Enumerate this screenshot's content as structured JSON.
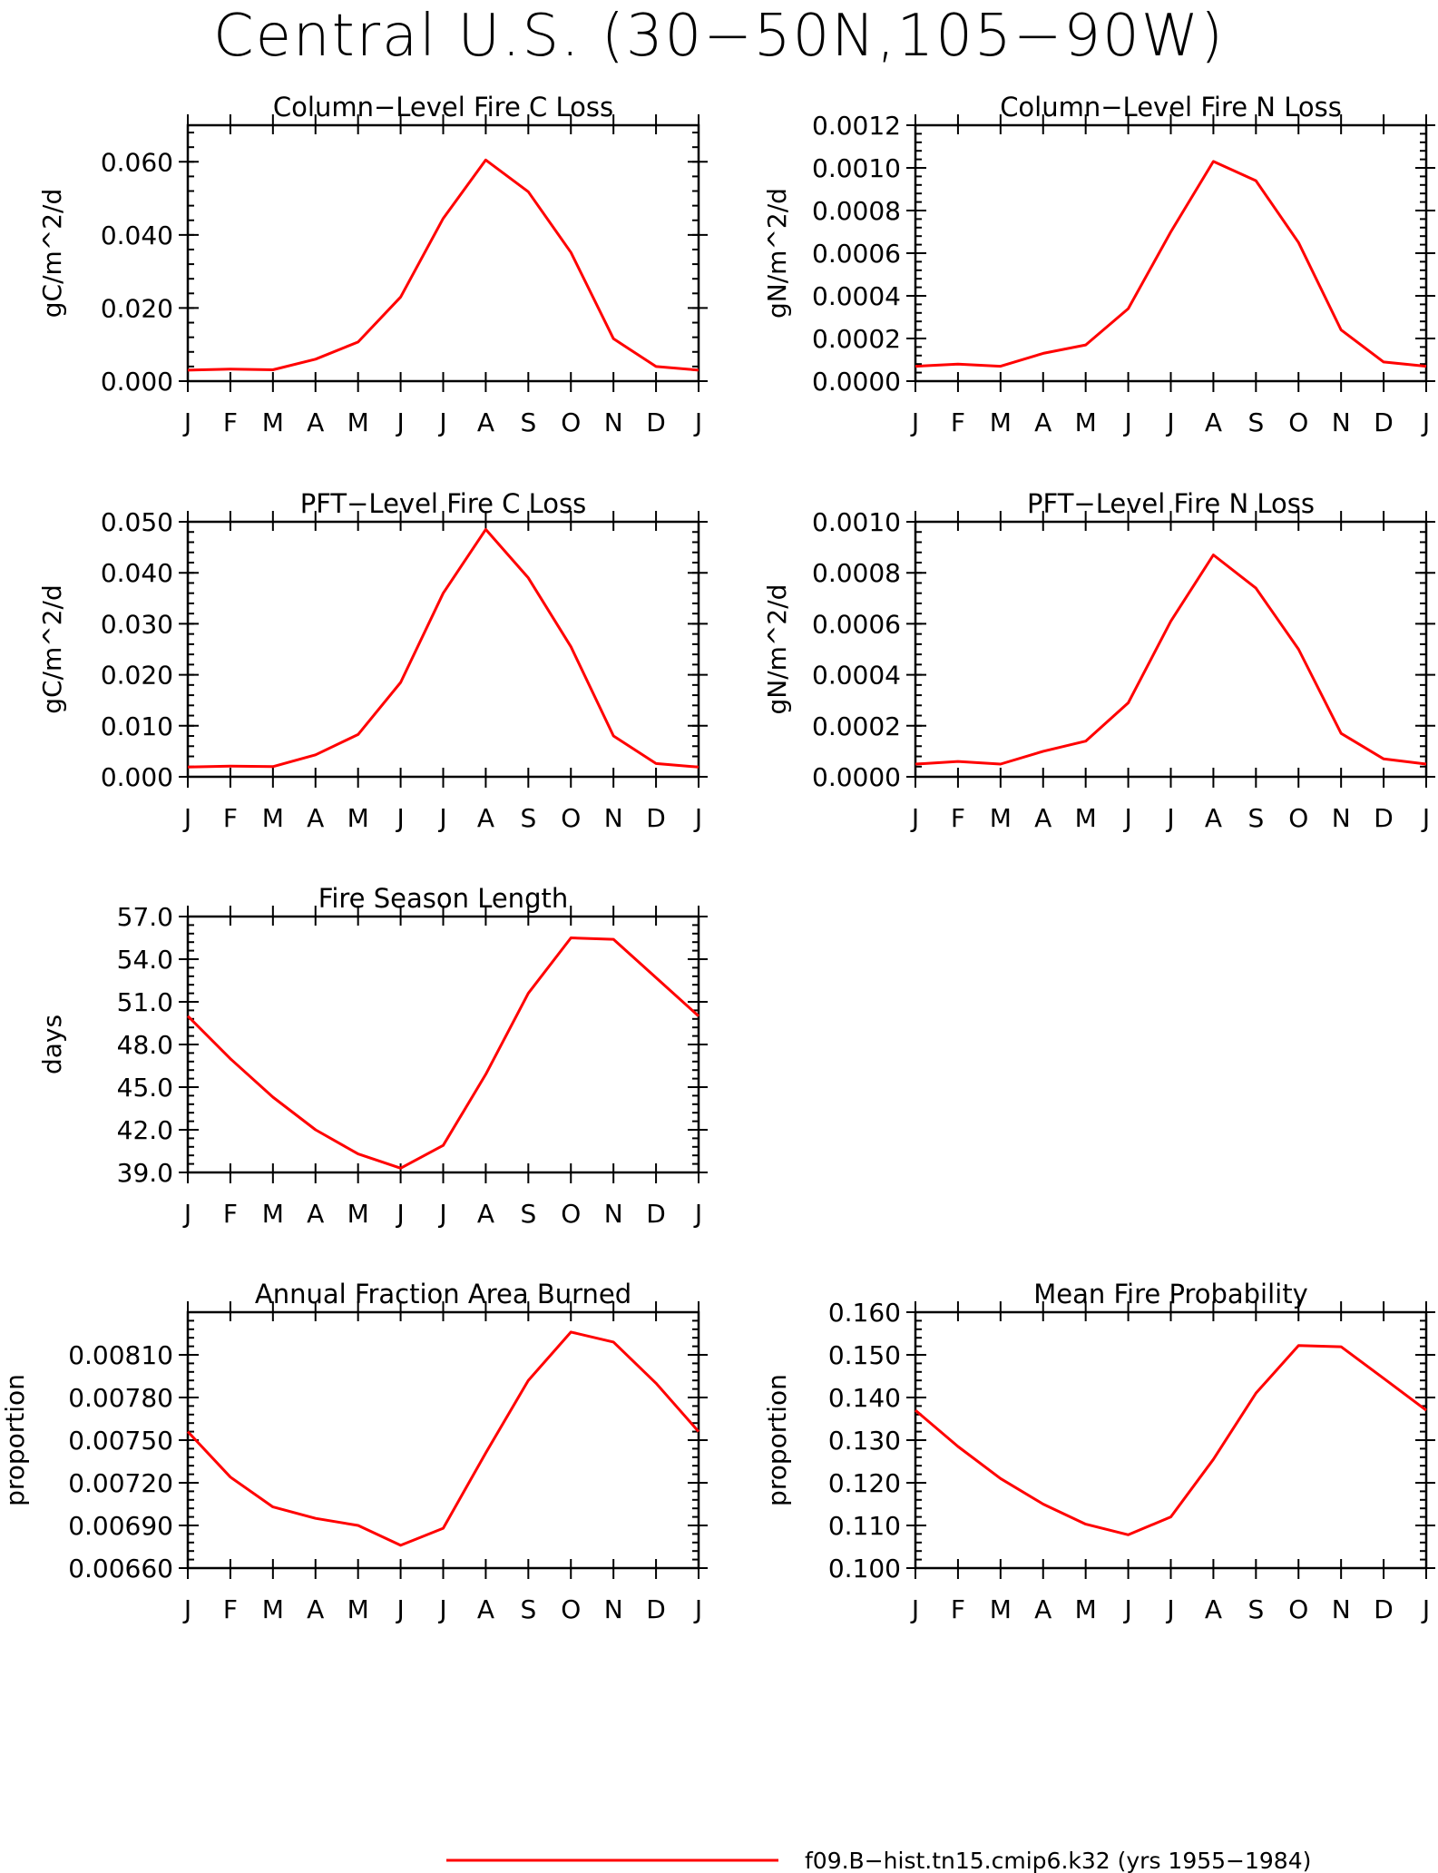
{
  "title": "Central U.S. (30−50N,105−90W)",
  "colors": {
    "series": "#ff0000",
    "axis": "#000000"
  },
  "legend": {
    "label": "f09.B−hist.tn15.cmip6.k32 (yrs 1955−1984)"
  },
  "chart_data": [
    {
      "type": "line",
      "title": "Column−Level Fire C Loss",
      "ylabel": "gC/m^2/d",
      "categories": [
        "J",
        "F",
        "M",
        "A",
        "M",
        "J",
        "J",
        "A",
        "S",
        "O",
        "N",
        "D",
        "J"
      ],
      "series": [
        {
          "values": [
            0.003,
            0.0033,
            0.0031,
            0.006,
            0.0107,
            0.023,
            0.0445,
            0.0605,
            0.0518,
            0.0352,
            0.0116,
            0.004,
            0.003
          ]
        }
      ],
      "ylim": [
        0,
        0.07
      ],
      "yticks": [
        0,
        0.02,
        0.04,
        0.06
      ],
      "ytick_labels": [
        "0.000",
        "0.020",
        "0.040",
        "0.060"
      ]
    },
    {
      "type": "line",
      "title": "Column−Level Fire N Loss",
      "ylabel": "gN/m^2/d",
      "categories": [
        "J",
        "F",
        "M",
        "A",
        "M",
        "J",
        "J",
        "A",
        "S",
        "O",
        "N",
        "D",
        "J"
      ],
      "series": [
        {
          "values": [
            7e-05,
            8e-05,
            7e-05,
            0.00013,
            0.00017,
            0.00034,
            0.0007,
            0.00103,
            0.00094,
            0.00065,
            0.00024,
            9e-05,
            7e-05
          ]
        }
      ],
      "ylim": [
        0,
        0.0012
      ],
      "yticks": [
        0,
        0.0002,
        0.0004,
        0.0006,
        0.0008,
        0.001,
        0.0012
      ],
      "ytick_labels": [
        "0.0000",
        "0.0002",
        "0.0004",
        "0.0006",
        "0.0008",
        "0.0010",
        "0.0012"
      ]
    },
    {
      "type": "line",
      "title": "PFT−Level Fire C Loss",
      "ylabel": "gC/m^2/d",
      "categories": [
        "J",
        "F",
        "M",
        "A",
        "M",
        "J",
        "J",
        "A",
        "S",
        "O",
        "N",
        "D",
        "J"
      ],
      "series": [
        {
          "values": [
            0.0019,
            0.0021,
            0.002,
            0.0043,
            0.0083,
            0.0185,
            0.036,
            0.0485,
            0.039,
            0.0255,
            0.008,
            0.0026,
            0.0019
          ]
        }
      ],
      "ylim": [
        0,
        0.05
      ],
      "yticks": [
        0,
        0.01,
        0.02,
        0.03,
        0.04,
        0.05
      ],
      "ytick_labels": [
        "0.000",
        "0.010",
        "0.020",
        "0.030",
        "0.040",
        "0.050"
      ]
    },
    {
      "type": "line",
      "title": "PFT−Level Fire N Loss",
      "ylabel": "gN/m^2/d",
      "categories": [
        "J",
        "F",
        "M",
        "A",
        "M",
        "J",
        "J",
        "A",
        "S",
        "O",
        "N",
        "D",
        "J"
      ],
      "series": [
        {
          "values": [
            5e-05,
            6e-05,
            5e-05,
            0.0001,
            0.00014,
            0.00029,
            0.00061,
            0.00087,
            0.00074,
            0.0005,
            0.00017,
            7e-05,
            5e-05
          ]
        }
      ],
      "ylim": [
        0,
        0.001
      ],
      "yticks": [
        0,
        0.0002,
        0.0004,
        0.0006,
        0.0008,
        0.001
      ],
      "ytick_labels": [
        "0.0000",
        "0.0002",
        "0.0004",
        "0.0006",
        "0.0008",
        "0.0010"
      ]
    },
    {
      "type": "line",
      "title": "Fire Season Length",
      "ylabel": "days",
      "categories": [
        "J",
        "F",
        "M",
        "A",
        "M",
        "J",
        "J",
        "A",
        "S",
        "O",
        "N",
        "D",
        "J"
      ],
      "series": [
        {
          "values": [
            50.0,
            47.0,
            44.3,
            42.0,
            40.3,
            39.3,
            40.9,
            45.9,
            51.6,
            55.5,
            55.4,
            52.7,
            50.0
          ]
        }
      ],
      "ylim": [
        39.0,
        57.0
      ],
      "yticks": [
        39,
        42,
        45,
        48,
        51,
        54,
        57
      ],
      "ytick_labels": [
        "39.0",
        "42.0",
        "45.0",
        "48.0",
        "51.0",
        "54.0",
        "57.0"
      ]
    },
    {
      "type": "line",
      "title": "Annual Fraction Area Burned",
      "ylabel": "proportion",
      "categories": [
        "J",
        "F",
        "M",
        "A",
        "M",
        "J",
        "J",
        "A",
        "S",
        "O",
        "N",
        "D",
        "J"
      ],
      "series": [
        {
          "values": [
            0.00756,
            0.00724,
            0.00703,
            0.00695,
            0.0069,
            0.00676,
            0.00688,
            0.00741,
            0.00792,
            0.00826,
            0.00819,
            0.0079,
            0.00756
          ]
        }
      ],
      "ylim": [
        0.0066,
        0.0084
      ],
      "yticks": [
        0.0066,
        0.0069,
        0.0072,
        0.0075,
        0.0078,
        0.0081
      ],
      "ytick_labels": [
        "0.00660",
        "0.00690",
        "0.00720",
        "0.00750",
        "0.00780",
        "0.00810"
      ]
    },
    {
      "type": "line",
      "title": "Mean Fire Probability",
      "ylabel": "proportion",
      "categories": [
        "J",
        "F",
        "M",
        "A",
        "M",
        "J",
        "J",
        "A",
        "S",
        "O",
        "N",
        "D",
        "J"
      ],
      "series": [
        {
          "values": [
            0.137,
            0.1285,
            0.121,
            0.115,
            0.1103,
            0.1078,
            0.112,
            0.1255,
            0.141,
            0.1522,
            0.1519,
            0.1445,
            0.137
          ]
        }
      ],
      "ylim": [
        0.1,
        0.16
      ],
      "yticks": [
        0.1,
        0.11,
        0.12,
        0.13,
        0.14,
        0.15,
        0.16
      ],
      "ytick_labels": [
        "0.100",
        "0.110",
        "0.120",
        "0.130",
        "0.140",
        "0.150",
        "0.160"
      ]
    }
  ]
}
